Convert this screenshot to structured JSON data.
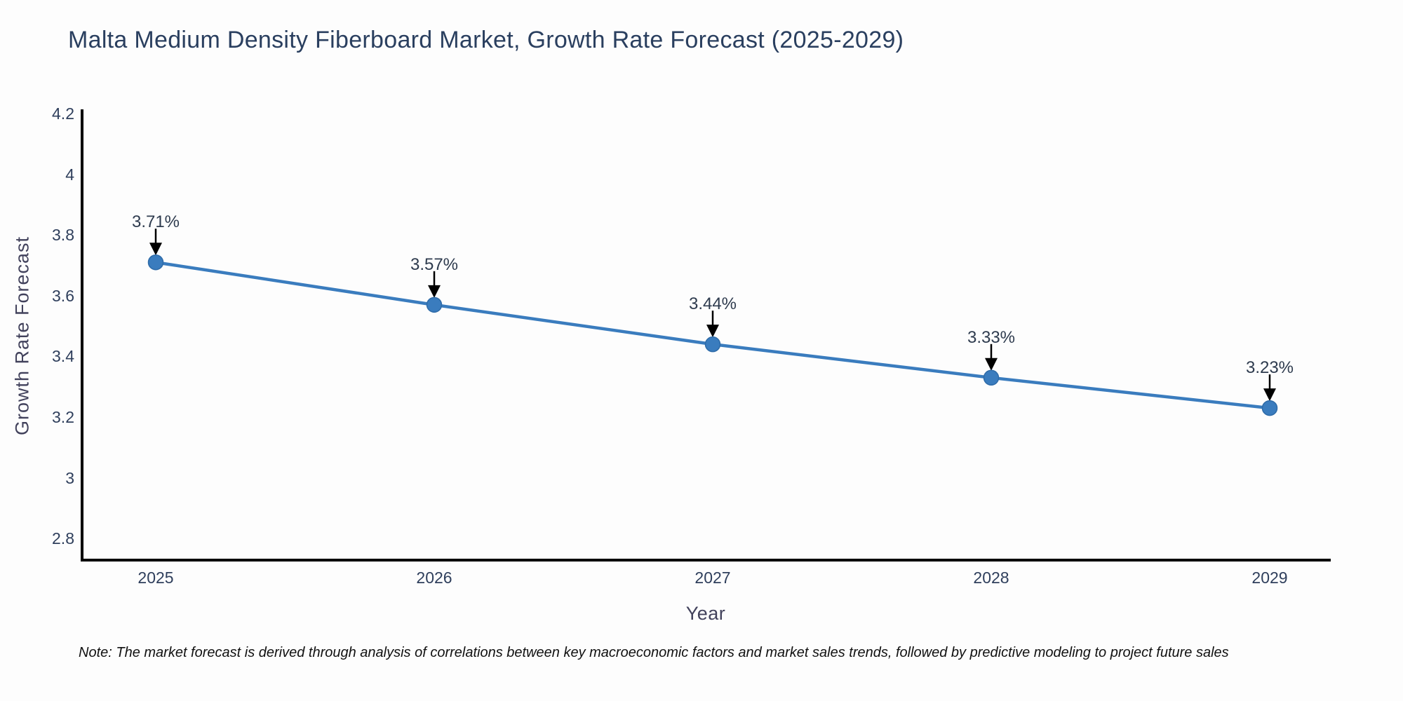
{
  "title": "Malta Medium Density Fiberboard Market, Growth Rate Forecast (2025-2029)",
  "note": "Note: The market forecast is derived through analysis of correlations between key macroeconomic factors and market sales trends, followed by predictive modeling to project future sales",
  "chart_data": {
    "type": "line",
    "title": "Malta Medium Density Fiberboard Market, Growth Rate Forecast (2025-2029)",
    "xlabel": "Year",
    "ylabel": "Growth Rate Forecast",
    "categories": [
      2025,
      2026,
      2027,
      2028,
      2029
    ],
    "values": [
      3.71,
      3.57,
      3.44,
      3.33,
      3.23
    ],
    "point_labels": [
      "3.71%",
      "3.57%",
      "3.44%",
      "3.33%",
      "3.23%"
    ],
    "y_ticks": [
      4.2,
      4,
      3.8,
      3.6,
      3.4,
      3.2,
      3,
      2.8
    ],
    "ylim": [
      2.73,
      4.21
    ],
    "grid": false,
    "legend": "none",
    "annotations": "down-arrow to each point",
    "colors": {
      "line": "#3a7cbe",
      "marker": "#3a7cbe",
      "marker_edge": "#2e6ba8",
      "axis": "#000000",
      "arrow": "#000000",
      "title": "#2a3f5f",
      "tick": "#2f3f5c",
      "axis_title": "#42425c"
    }
  }
}
